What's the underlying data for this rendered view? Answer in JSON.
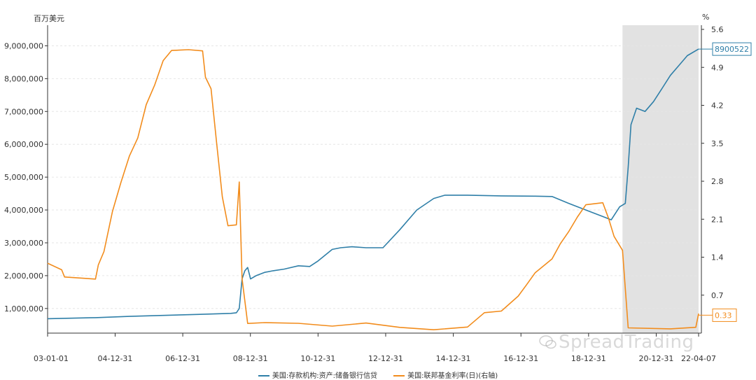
{
  "units": {
    "left": "百万美元",
    "right": "%"
  },
  "legend": [
    {
      "label": "美国:存款机构:资产:储备银行信贷",
      "color": "#2f7fa8"
    },
    {
      "label": "美国:联邦基金利率(日)(右轴)",
      "color": "#f28c1c"
    }
  ],
  "watermark": "SpreadTrading",
  "colors": {
    "blue": "#2f7fa8",
    "orange": "#f28c1c",
    "shade": "#e2e2e2",
    "grid": "#e6e6e6",
    "axis": "#333333"
  },
  "chart_data": {
    "type": "line",
    "x_ticks": [
      "03-01-01",
      "04-12-31",
      "06-12-31",
      "08-12-31",
      "10-12-31",
      "12-12-31",
      "14-12-31",
      "16-12-31",
      "18-12-31",
      "20-12-31",
      "22-04-07"
    ],
    "y_left": {
      "ticks": [
        "1,000,000",
        "2,000,000",
        "3,000,000",
        "4,000,000",
        "5,000,000",
        "6,000,000",
        "7,000,000",
        "8,000,000",
        "9,000,000"
      ],
      "range": [
        250000,
        9500000
      ]
    },
    "y_right": {
      "ticks": [
        "0.7",
        "1.4",
        "2.1",
        "2.8",
        "3.5",
        "4.2",
        "4.9",
        "5.6"
      ],
      "range": [
        0,
        5.6
      ]
    },
    "shaded_period": [
      "2020-01",
      "2022-04"
    ],
    "series": [
      {
        "name": "美国:存款机构:资产:储备银行信贷",
        "axis": "left",
        "color": "#2f7fa8",
        "last_label": "8900522",
        "points": [
          [
            "2003-01",
            690000
          ],
          [
            "2004-06",
            720000
          ],
          [
            "2005-06",
            760000
          ],
          [
            "2006-06",
            790000
          ],
          [
            "2007-06",
            820000
          ],
          [
            "2008-06",
            850000
          ],
          [
            "2008-08",
            870000
          ],
          [
            "2008-09",
            1000000
          ],
          [
            "2008-10",
            1900000
          ],
          [
            "2008-11",
            2150000
          ],
          [
            "2008-12",
            2250000
          ],
          [
            "2009-01",
            1900000
          ],
          [
            "2009-03",
            2000000
          ],
          [
            "2009-06",
            2100000
          ],
          [
            "2009-09",
            2150000
          ],
          [
            "2010-01",
            2200000
          ],
          [
            "2010-06",
            2300000
          ],
          [
            "2010-10",
            2280000
          ],
          [
            "2011-01",
            2450000
          ],
          [
            "2011-06",
            2800000
          ],
          [
            "2011-09",
            2850000
          ],
          [
            "2012-01",
            2880000
          ],
          [
            "2012-06",
            2850000
          ],
          [
            "2012-12",
            2850000
          ],
          [
            "2013-06",
            3400000
          ],
          [
            "2013-12",
            4000000
          ],
          [
            "2014-06",
            4350000
          ],
          [
            "2014-10",
            4450000
          ],
          [
            "2015-06",
            4450000
          ],
          [
            "2016-06",
            4430000
          ],
          [
            "2017-06",
            4420000
          ],
          [
            "2017-12",
            4410000
          ],
          [
            "2018-06",
            4200000
          ],
          [
            "2018-12",
            4000000
          ],
          [
            "2019-06",
            3800000
          ],
          [
            "2019-09",
            3700000
          ],
          [
            "2019-12",
            4100000
          ],
          [
            "2020-02",
            4200000
          ],
          [
            "2020-03",
            5300000
          ],
          [
            "2020-04",
            6600000
          ],
          [
            "2020-06",
            7100000
          ],
          [
            "2020-09",
            7000000
          ],
          [
            "2020-12",
            7300000
          ],
          [
            "2021-03",
            7700000
          ],
          [
            "2021-06",
            8100000
          ],
          [
            "2021-09",
            8400000
          ],
          [
            "2021-12",
            8700000
          ],
          [
            "2022-04",
            8900522
          ]
        ]
      },
      {
        "name": "美国:联邦基金利率(日)(右轴)",
        "axis": "right",
        "color": "#f28c1c",
        "last_label": "0.33",
        "points": [
          [
            "2003-01",
            1.25
          ],
          [
            "2003-06",
            1.2
          ],
          [
            "2003-07",
            1.0
          ],
          [
            "2004-06",
            1.0
          ],
          [
            "2004-07",
            1.25
          ],
          [
            "2004-09",
            1.5
          ],
          [
            "2004-12",
            2.25
          ],
          [
            "2005-03",
            2.75
          ],
          [
            "2005-06",
            3.25
          ],
          [
            "2005-09",
            3.6
          ],
          [
            "2005-12",
            4.25
          ],
          [
            "2006-03",
            4.6
          ],
          [
            "2006-06",
            5.0
          ],
          [
            "2006-09",
            5.25
          ],
          [
            "2007-03",
            5.25
          ],
          [
            "2007-08",
            5.2
          ],
          [
            "2007-09",
            4.75
          ],
          [
            "2007-11",
            4.5
          ],
          [
            "2008-01",
            3.5
          ],
          [
            "2008-03",
            2.5
          ],
          [
            "2008-05",
            2.0
          ],
          [
            "2008-08",
            2.0
          ],
          [
            "2008-09",
            2.8
          ],
          [
            "2008-10",
            1.0
          ],
          [
            "2008-12",
            0.15
          ],
          [
            "2009-06",
            0.18
          ],
          [
            "2010-06",
            0.18
          ],
          [
            "2011-06",
            0.09
          ],
          [
            "2012-06",
            0.16
          ],
          [
            "2013-06",
            0.1
          ],
          [
            "2014-06",
            0.1
          ],
          [
            "2015-06",
            0.13
          ],
          [
            "2015-12",
            0.36
          ],
          [
            "2016-06",
            0.4
          ],
          [
            "2016-12",
            0.66
          ],
          [
            "2017-03",
            0.9
          ],
          [
            "2017-06",
            1.15
          ],
          [
            "2017-12",
            1.4
          ],
          [
            "2018-03",
            1.65
          ],
          [
            "2018-06",
            1.9
          ],
          [
            "2018-09",
            2.15
          ],
          [
            "2018-12",
            2.4
          ],
          [
            "2019-06",
            2.4
          ],
          [
            "2019-08",
            2.1
          ],
          [
            "2019-10",
            1.8
          ],
          [
            "2020-01",
            1.55
          ],
          [
            "2020-03",
            0.08
          ],
          [
            "2021-06",
            0.08
          ],
          [
            "2022-03",
            0.08
          ],
          [
            "2022-04",
            0.33
          ]
        ]
      }
    ]
  }
}
